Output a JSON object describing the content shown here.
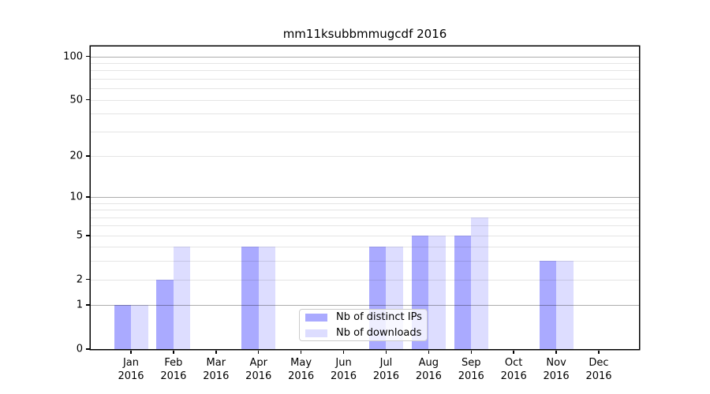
{
  "chart_data": {
    "type": "bar",
    "title": "mm11ksubbmmugcdf 2016",
    "x_tick_months": [
      "Jan",
      "Feb",
      "Mar",
      "Apr",
      "May",
      "Jun",
      "Jul",
      "Aug",
      "Sep",
      "Oct",
      "Nov",
      "Dec"
    ],
    "x_tick_year": "2016",
    "series": [
      {
        "name": "Nb of distinct IPs",
        "color": "#aaaaff",
        "values": [
          1,
          2,
          0,
          4,
          0,
          0,
          4,
          5,
          5,
          0,
          3,
          0
        ]
      },
      {
        "name": "Nb of downloads",
        "color": "#ddddff",
        "values": [
          1,
          4,
          0,
          4,
          0,
          0,
          4,
          5,
          7,
          0,
          3,
          0
        ]
      }
    ],
    "yscale": "log1p",
    "ylim": [
      0,
      117
    ],
    "y_tick_values": [
      0,
      1,
      2,
      5,
      10,
      20,
      50,
      100
    ],
    "y_tick_labels": [
      "0",
      "1",
      "2",
      "5",
      "10",
      "20",
      "50",
      "100"
    ],
    "grid": {
      "major": [
        1,
        10,
        100
      ],
      "minor": [
        2,
        3,
        4,
        5,
        6,
        7,
        8,
        9,
        20,
        30,
        40,
        50,
        60,
        70,
        80,
        90
      ]
    },
    "legend": {
      "position": "lower center",
      "items": [
        {
          "label": "Nb of distinct IPs",
          "color": "#aaaaff"
        },
        {
          "label": "Nb of downloads",
          "color": "#ddddff"
        }
      ]
    }
  }
}
